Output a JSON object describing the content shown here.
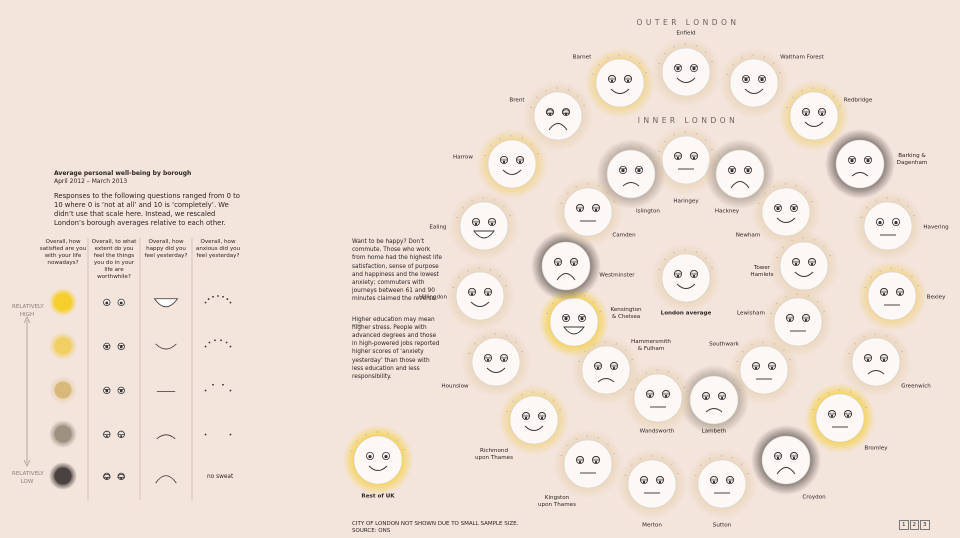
{
  "header": {
    "title": "Average personal well-being by borough",
    "dates": "April 2012 – March 2013",
    "intro": "Responses to the following questions ranged from 0 to 10 where 0 is ‘not at all’ and 10 is ‘completely’. We didn’t use that scale here. Instead, we rescaled London’s borough averages relative to each other."
  },
  "legend": {
    "columns": [
      "Overall, how satisfied are you with your life nowadays?",
      "Overall, to what extent do you feel the things you do in your life are worthwhile?",
      "Overall, how happy did you feel yesterday?",
      "Overall, how anxious did you feel yesterday?"
    ],
    "high": [
      "RELATIVELY",
      "HIGH"
    ],
    "low": [
      "RELATIVELY",
      "LOW"
    ],
    "no_anxiety": "no sweat"
  },
  "note": [
    "Want to be happy? Don’t commute. Those who work from home had the highest life satisfaction, sense of purpose and happiness and the lowest anxiety; commuters with journeys between 61 and 90 minutes claimed the reverse.",
    "Higher education may mean higher stress. People with advanced degrees and those in high-powered jobs reported higher scores of ‘anxiety yesterday’ than those with less education and less responsibility."
  ],
  "rings": {
    "outer": "OUTER LONDON",
    "inner": "INNER LONDON"
  },
  "outer_boroughs": [
    "Enfield",
    "Waltham Forest",
    "Redbridge",
    "Barking & Dagenham",
    "Havering",
    "Bexley",
    "Greenwich",
    "Bromley",
    "Croydon",
    "Sutton",
    "Merton",
    "Kingston upon Thames",
    "Richmond upon Thames",
    "Hounslow",
    "Hillingdon",
    "Ealing",
    "Harrow",
    "Brent",
    "Barnet"
  ],
  "inner_boroughs": [
    "Haringey",
    "Hackney",
    "Newham",
    "Tower Hamlets",
    "Lewisham",
    "Southwark",
    "Lambeth",
    "Wandsworth",
    "Hammersmith & Fulham",
    "Kensington & Chelsea",
    "Westminster",
    "Camden",
    "Islington"
  ],
  "london_average": "London average",
  "rest_of_uk": "Rest of UK",
  "footer": [
    "CITY OF LONDON NOT SHOWN DUE TO SMALL SAMPLE SIZE.",
    "SOURCE: ONS"
  ],
  "pager": [
    "1",
    "2",
    "3"
  ]
}
